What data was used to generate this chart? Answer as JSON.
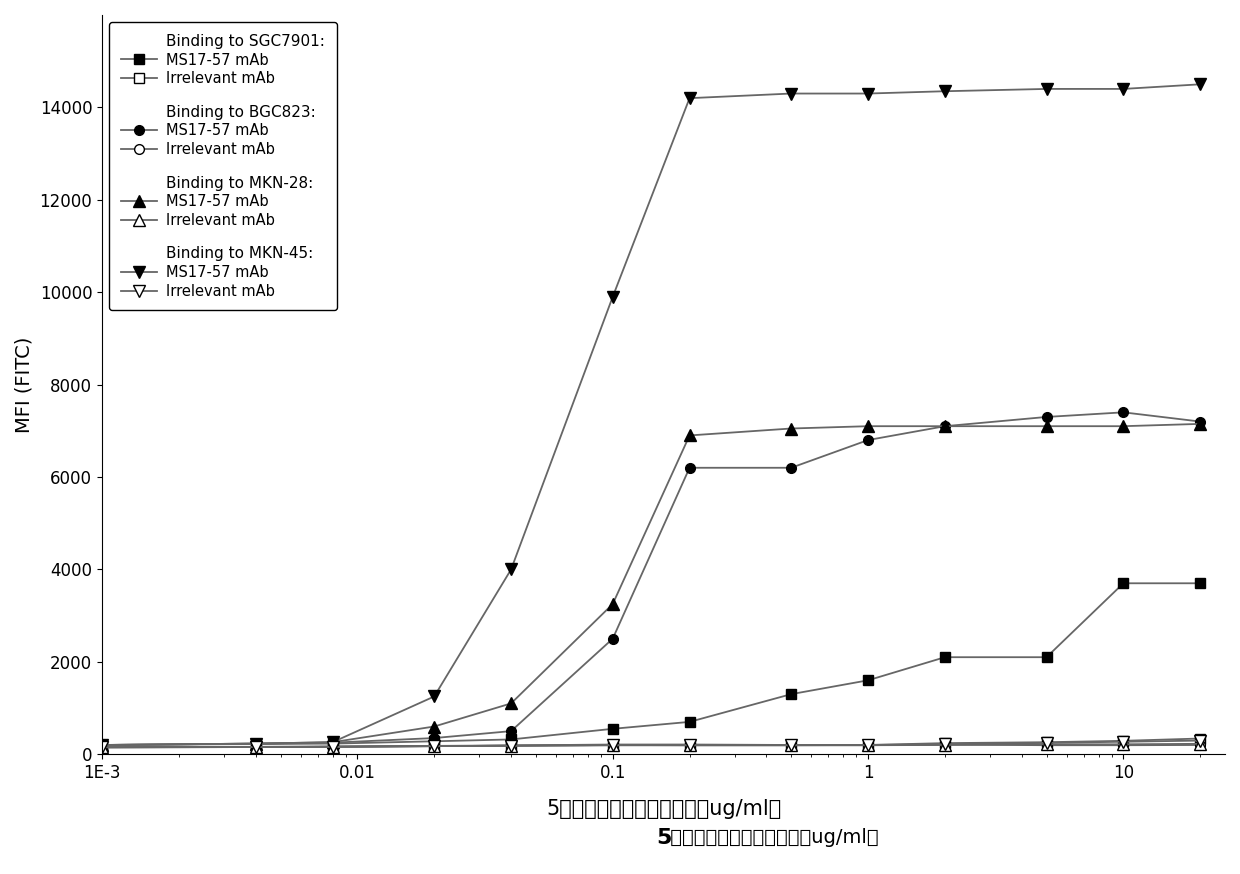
{
  "x_values": [
    0.001,
    0.004,
    0.008,
    0.02,
    0.04,
    0.1,
    0.2,
    0.5,
    1.0,
    2.0,
    5.0,
    10.0,
    20.0
  ],
  "SGC7901_MS": [
    200,
    220,
    230,
    280,
    320,
    550,
    700,
    1300,
    1600,
    2100,
    2100,
    3700,
    3700
  ],
  "SGC7901_Irr": [
    150,
    160,
    170,
    180,
    190,
    210,
    210,
    200,
    200,
    240,
    260,
    290,
    340
  ],
  "BGC823_MS": [
    200,
    230,
    250,
    350,
    500,
    2500,
    6200,
    6200,
    6800,
    7100,
    7300,
    7400,
    7200
  ],
  "BGC823_Irr": [
    150,
    155,
    160,
    175,
    185,
    200,
    195,
    195,
    195,
    210,
    195,
    195,
    200
  ],
  "MKN28_MS": [
    200,
    230,
    260,
    600,
    1100,
    3250,
    6900,
    7050,
    7100,
    7100,
    7100,
    7100,
    7150
  ],
  "MKN28_Irr": [
    150,
    155,
    160,
    175,
    185,
    195,
    195,
    195,
    195,
    200,
    215,
    215,
    225
  ],
  "MKN45_MS": [
    200,
    230,
    260,
    1250,
    4000,
    9900,
    14200,
    14300,
    14300,
    14350,
    14400,
    14400,
    14500
  ],
  "MKN45_Irr": [
    150,
    155,
    160,
    175,
    185,
    195,
    195,
    195,
    200,
    215,
    245,
    270,
    295
  ],
  "ylabel": "MFI (FITC)",
  "xlabel_part1": "5",
  "xlabel_part2": "倍系列稀释的单克隆抗体（ug/ml）",
  "ylim_min": 0,
  "ylim_max": 16000,
  "yticks": [
    0,
    2000,
    4000,
    6000,
    8000,
    10000,
    12000,
    14000
  ],
  "xlim_min": 0.001,
  "xlim_max": 25,
  "line_color": "#666666"
}
